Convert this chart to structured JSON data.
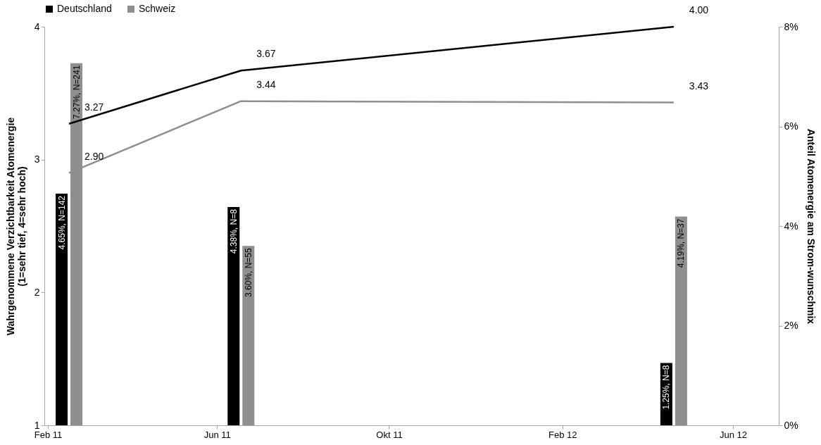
{
  "chart_data": {
    "type": "bar",
    "ylabel": "Wahrgenommene Verzichtbarkeit Atomenergie\n(1=sehr tief, 4=sehr hoch)",
    "y2label": "Anteil Atomenergie am Strom-wunschmix",
    "xlim": [
      "2011-02-01",
      "2012-07-01"
    ],
    "xticks": [
      {
        "value": "2011-02-01",
        "label": "Feb 11"
      },
      {
        "value": "2011-06-01",
        "label": "Jun 11"
      },
      {
        "value": "2011-10-01",
        "label": "Okt 11"
      },
      {
        "value": "2012-02-01",
        "label": "Feb 12"
      },
      {
        "value": "2012-06-01",
        "label": "Jun 12"
      }
    ],
    "ylim": [
      1,
      4
    ],
    "yticks": [
      1,
      2,
      3,
      4
    ],
    "y2lim": [
      0,
      8
    ],
    "y2ticks": [
      {
        "value": 0,
        "label": "0%"
      },
      {
        "value": 2,
        "label": "2%"
      },
      {
        "value": 4,
        "label": "4%"
      },
      {
        "value": 6,
        "label": "6%"
      },
      {
        "value": 8,
        "label": "8%"
      }
    ],
    "legend": "top",
    "series": [
      {
        "name": "Deutschland",
        "axis": "y2",
        "color": "#000000",
        "x": [
          "2011-02-16",
          "2011-06-18",
          "2012-04-20"
        ],
        "values": [
          4.65,
          4.38,
          1.25
        ],
        "value_labels": [
          "4.65%, N=142",
          "4.38%, N=8",
          "1.25%, N=8"
        ]
      },
      {
        "name": "Schweiz",
        "axis": "y2",
        "color": "#8f8f8f",
        "x": [
          "2011-02-16",
          "2011-06-18",
          "2012-04-20"
        ],
        "values": [
          7.27,
          3.6,
          4.19
        ],
        "value_labels": [
          "7.27%, N=241",
          "3.60%, N=55",
          "4.19%, N=37"
        ]
      },
      {
        "type": "line",
        "color": "#000000",
        "x": [
          "2011-02-16",
          "2011-06-18",
          "2012-04-20"
        ],
        "values": [
          3.27,
          3.67,
          4.0
        ],
        "value_labels": [
          "3.27",
          "3.67",
          "4.00"
        ]
      },
      {
        "type": "line",
        "color": "#8f8f8f",
        "x": [
          "2011-02-16",
          "2011-06-18",
          "2012-04-20"
        ],
        "values": [
          2.9,
          3.44,
          3.43
        ],
        "value_labels": [
          "2.90",
          "3.44",
          "3.43"
        ]
      }
    ]
  }
}
